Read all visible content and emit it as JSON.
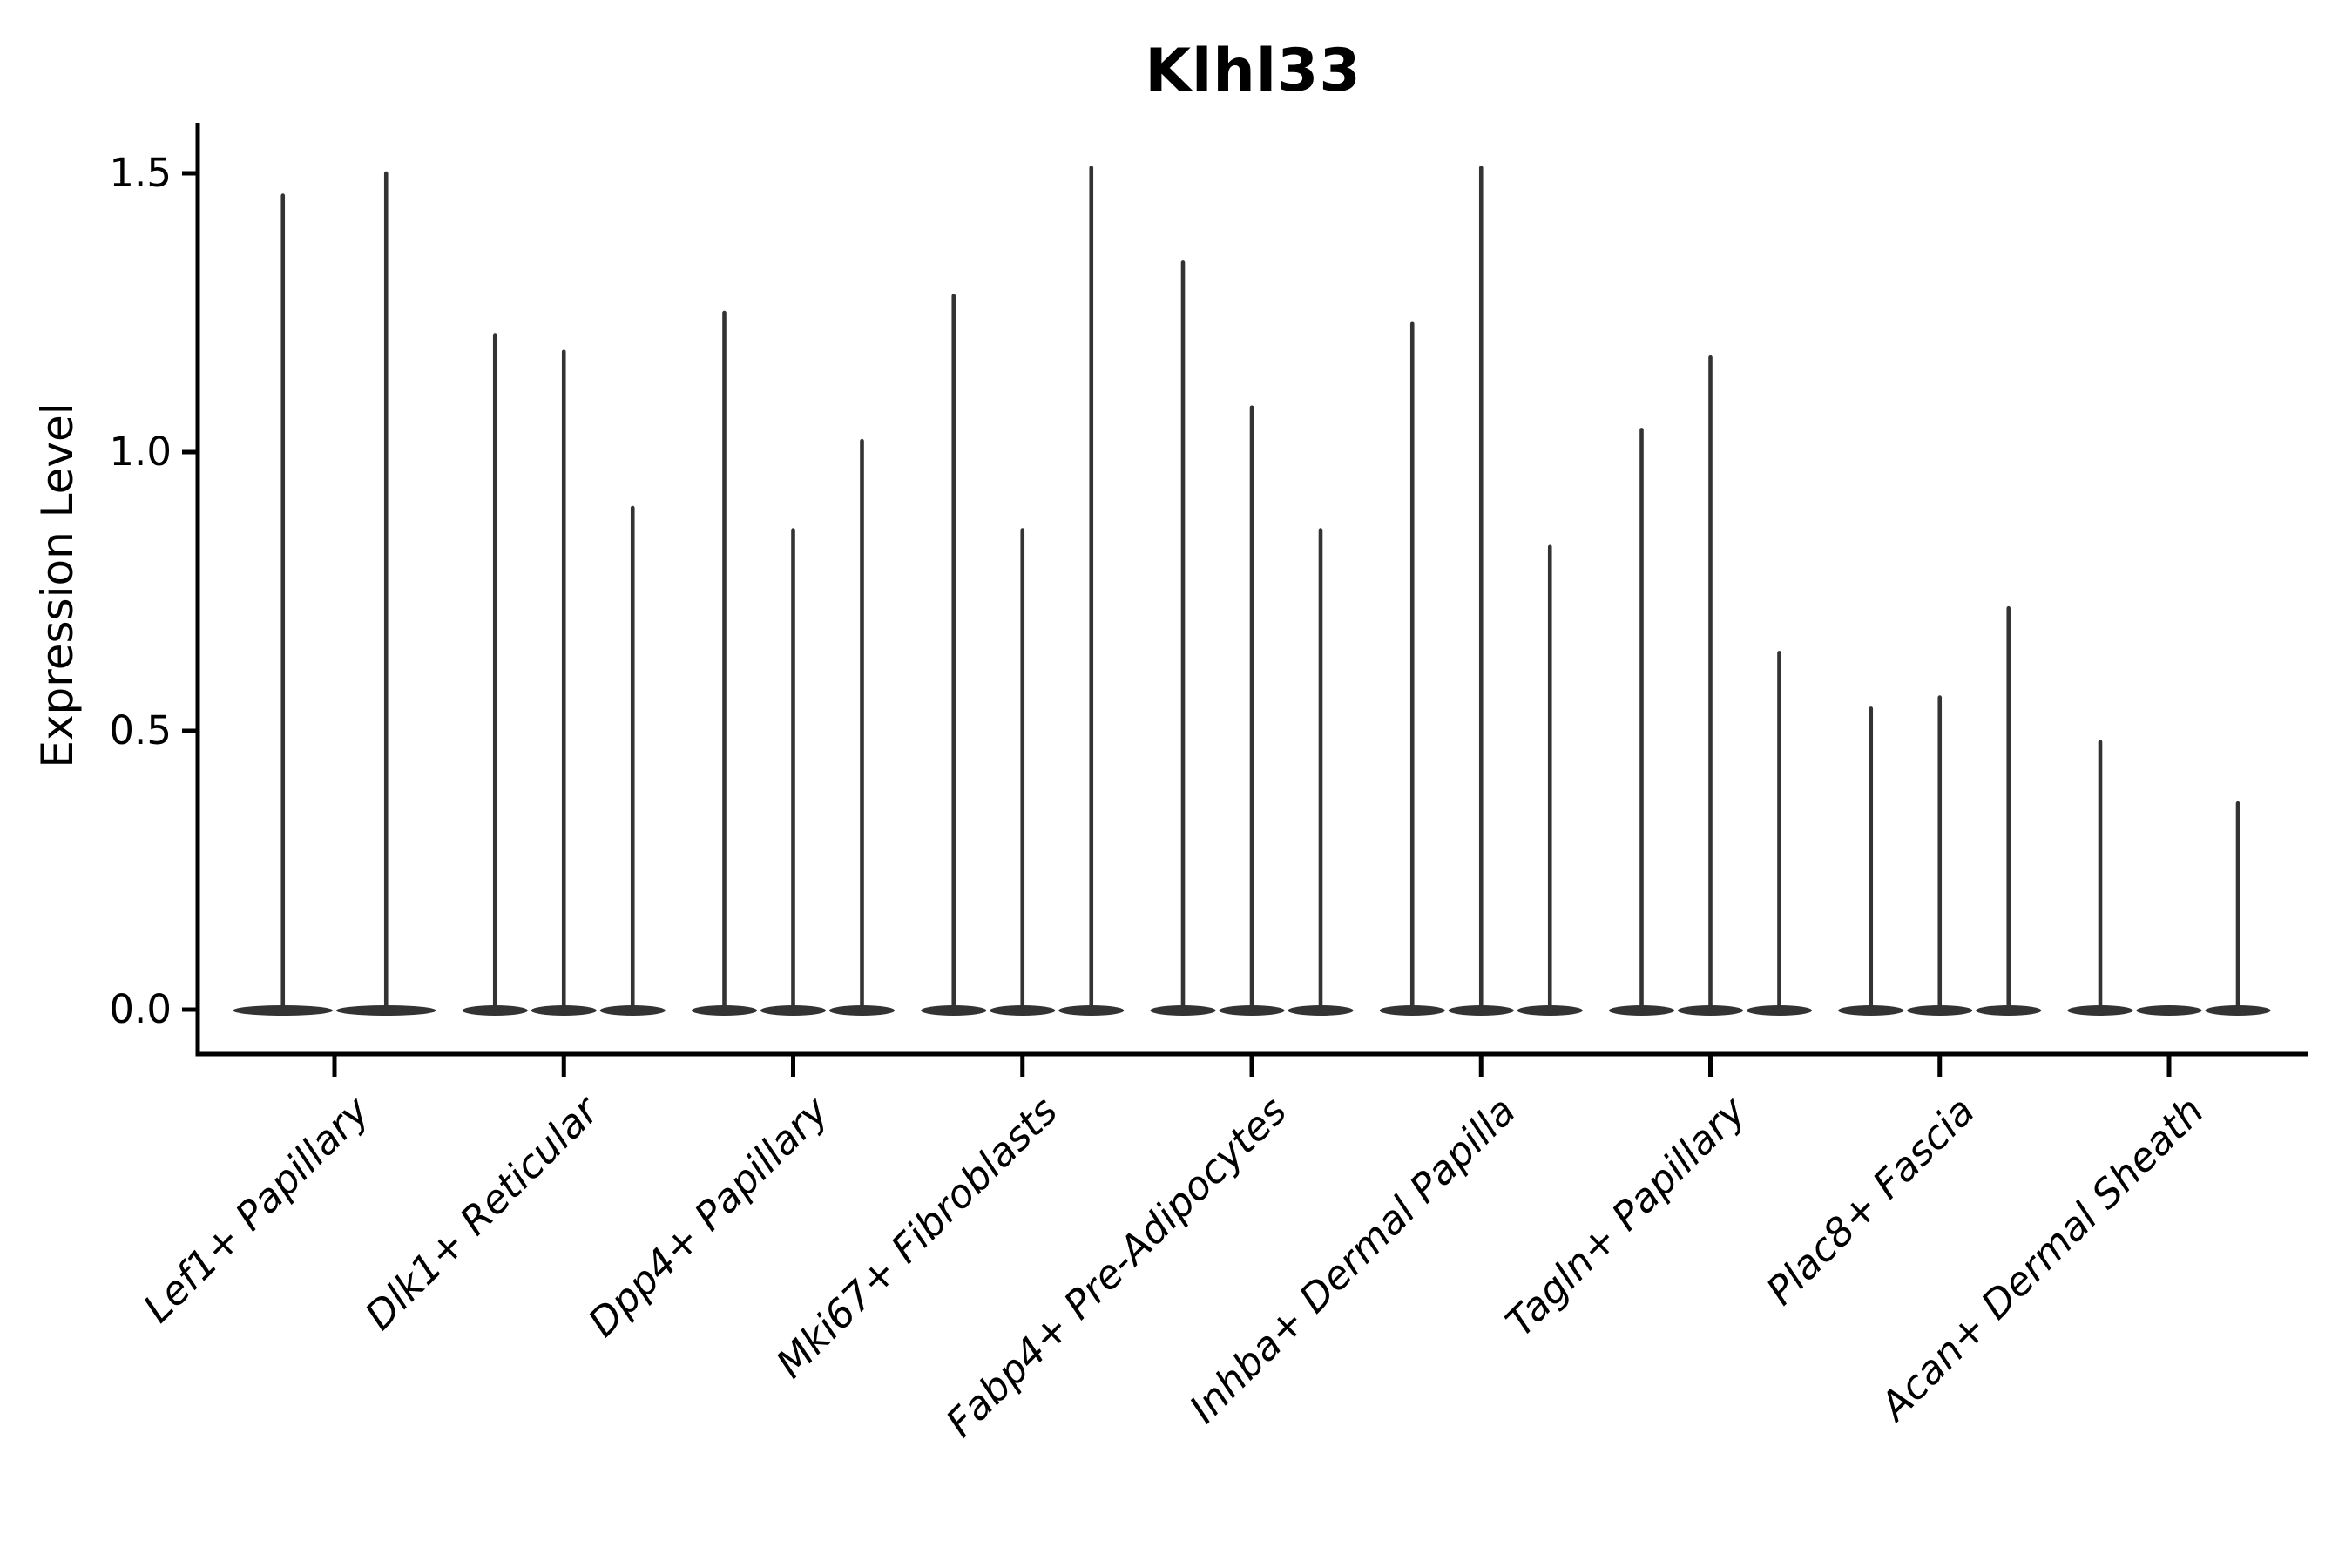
{
  "figure": {
    "background_color": "#ffffff",
    "text_color": "#000000"
  },
  "chart_data": {
    "type": "violin",
    "title": "Klhl33",
    "xlabel": "",
    "ylabel": "Expression Level",
    "ylim": [
      0,
      1.6
    ],
    "yticks": [
      "0.0",
      "0.5",
      "1.0",
      "1.5"
    ],
    "grid": false,
    "legend": "none",
    "baseline_value": 0.0,
    "description": "Each category holds narrow violins collapsed at 0 with a thin spike up to the max expression value",
    "categories": [
      "Lef1+ Papillary",
      "Dlk1+ Reticular",
      "Dpp4+ Papillary",
      "Mki67+ Fibroblasts",
      "Fabp4+ Pre-Adipocytes",
      "Inhba+ Dermal Papilla",
      "Tagln+ Papillary",
      "Plac8+ Fascia",
      "Acan+ Dermal Sheath"
    ],
    "groups": [
      {
        "category": "Lef1+ Papillary",
        "violin_max_values": [
          1.46,
          1.5
        ]
      },
      {
        "category": "Dlk1+ Reticular",
        "violin_max_values": [
          1.21,
          1.18,
          0.9
        ]
      },
      {
        "category": "Dpp4+ Papillary",
        "violin_max_values": [
          1.25,
          0.86,
          1.02
        ]
      },
      {
        "category": "Mki67+ Fibroblasts",
        "violin_max_values": [
          1.28,
          0.86,
          1.51
        ]
      },
      {
        "category": "Fabp4+ Pre-Adipocytes",
        "violin_max_values": [
          1.34,
          1.08,
          0.86
        ]
      },
      {
        "category": "Inhba+ Dermal Papilla",
        "violin_max_values": [
          1.23,
          1.51,
          0.83
        ]
      },
      {
        "category": "Tagln+ Papillary",
        "violin_max_values": [
          1.04,
          1.17,
          0.64
        ]
      },
      {
        "category": "Plac8+ Fascia",
        "violin_max_values": [
          0.54,
          0.56,
          0.72
        ]
      },
      {
        "category": "Acan+ Dermal Sheath",
        "violin_max_values": [
          0.48,
          0.0,
          0.37
        ]
      }
    ],
    "colors": {
      "axis": "#000000",
      "violin_fill": "#333333",
      "violin_stroke": "#333333",
      "text": "#000000"
    }
  }
}
